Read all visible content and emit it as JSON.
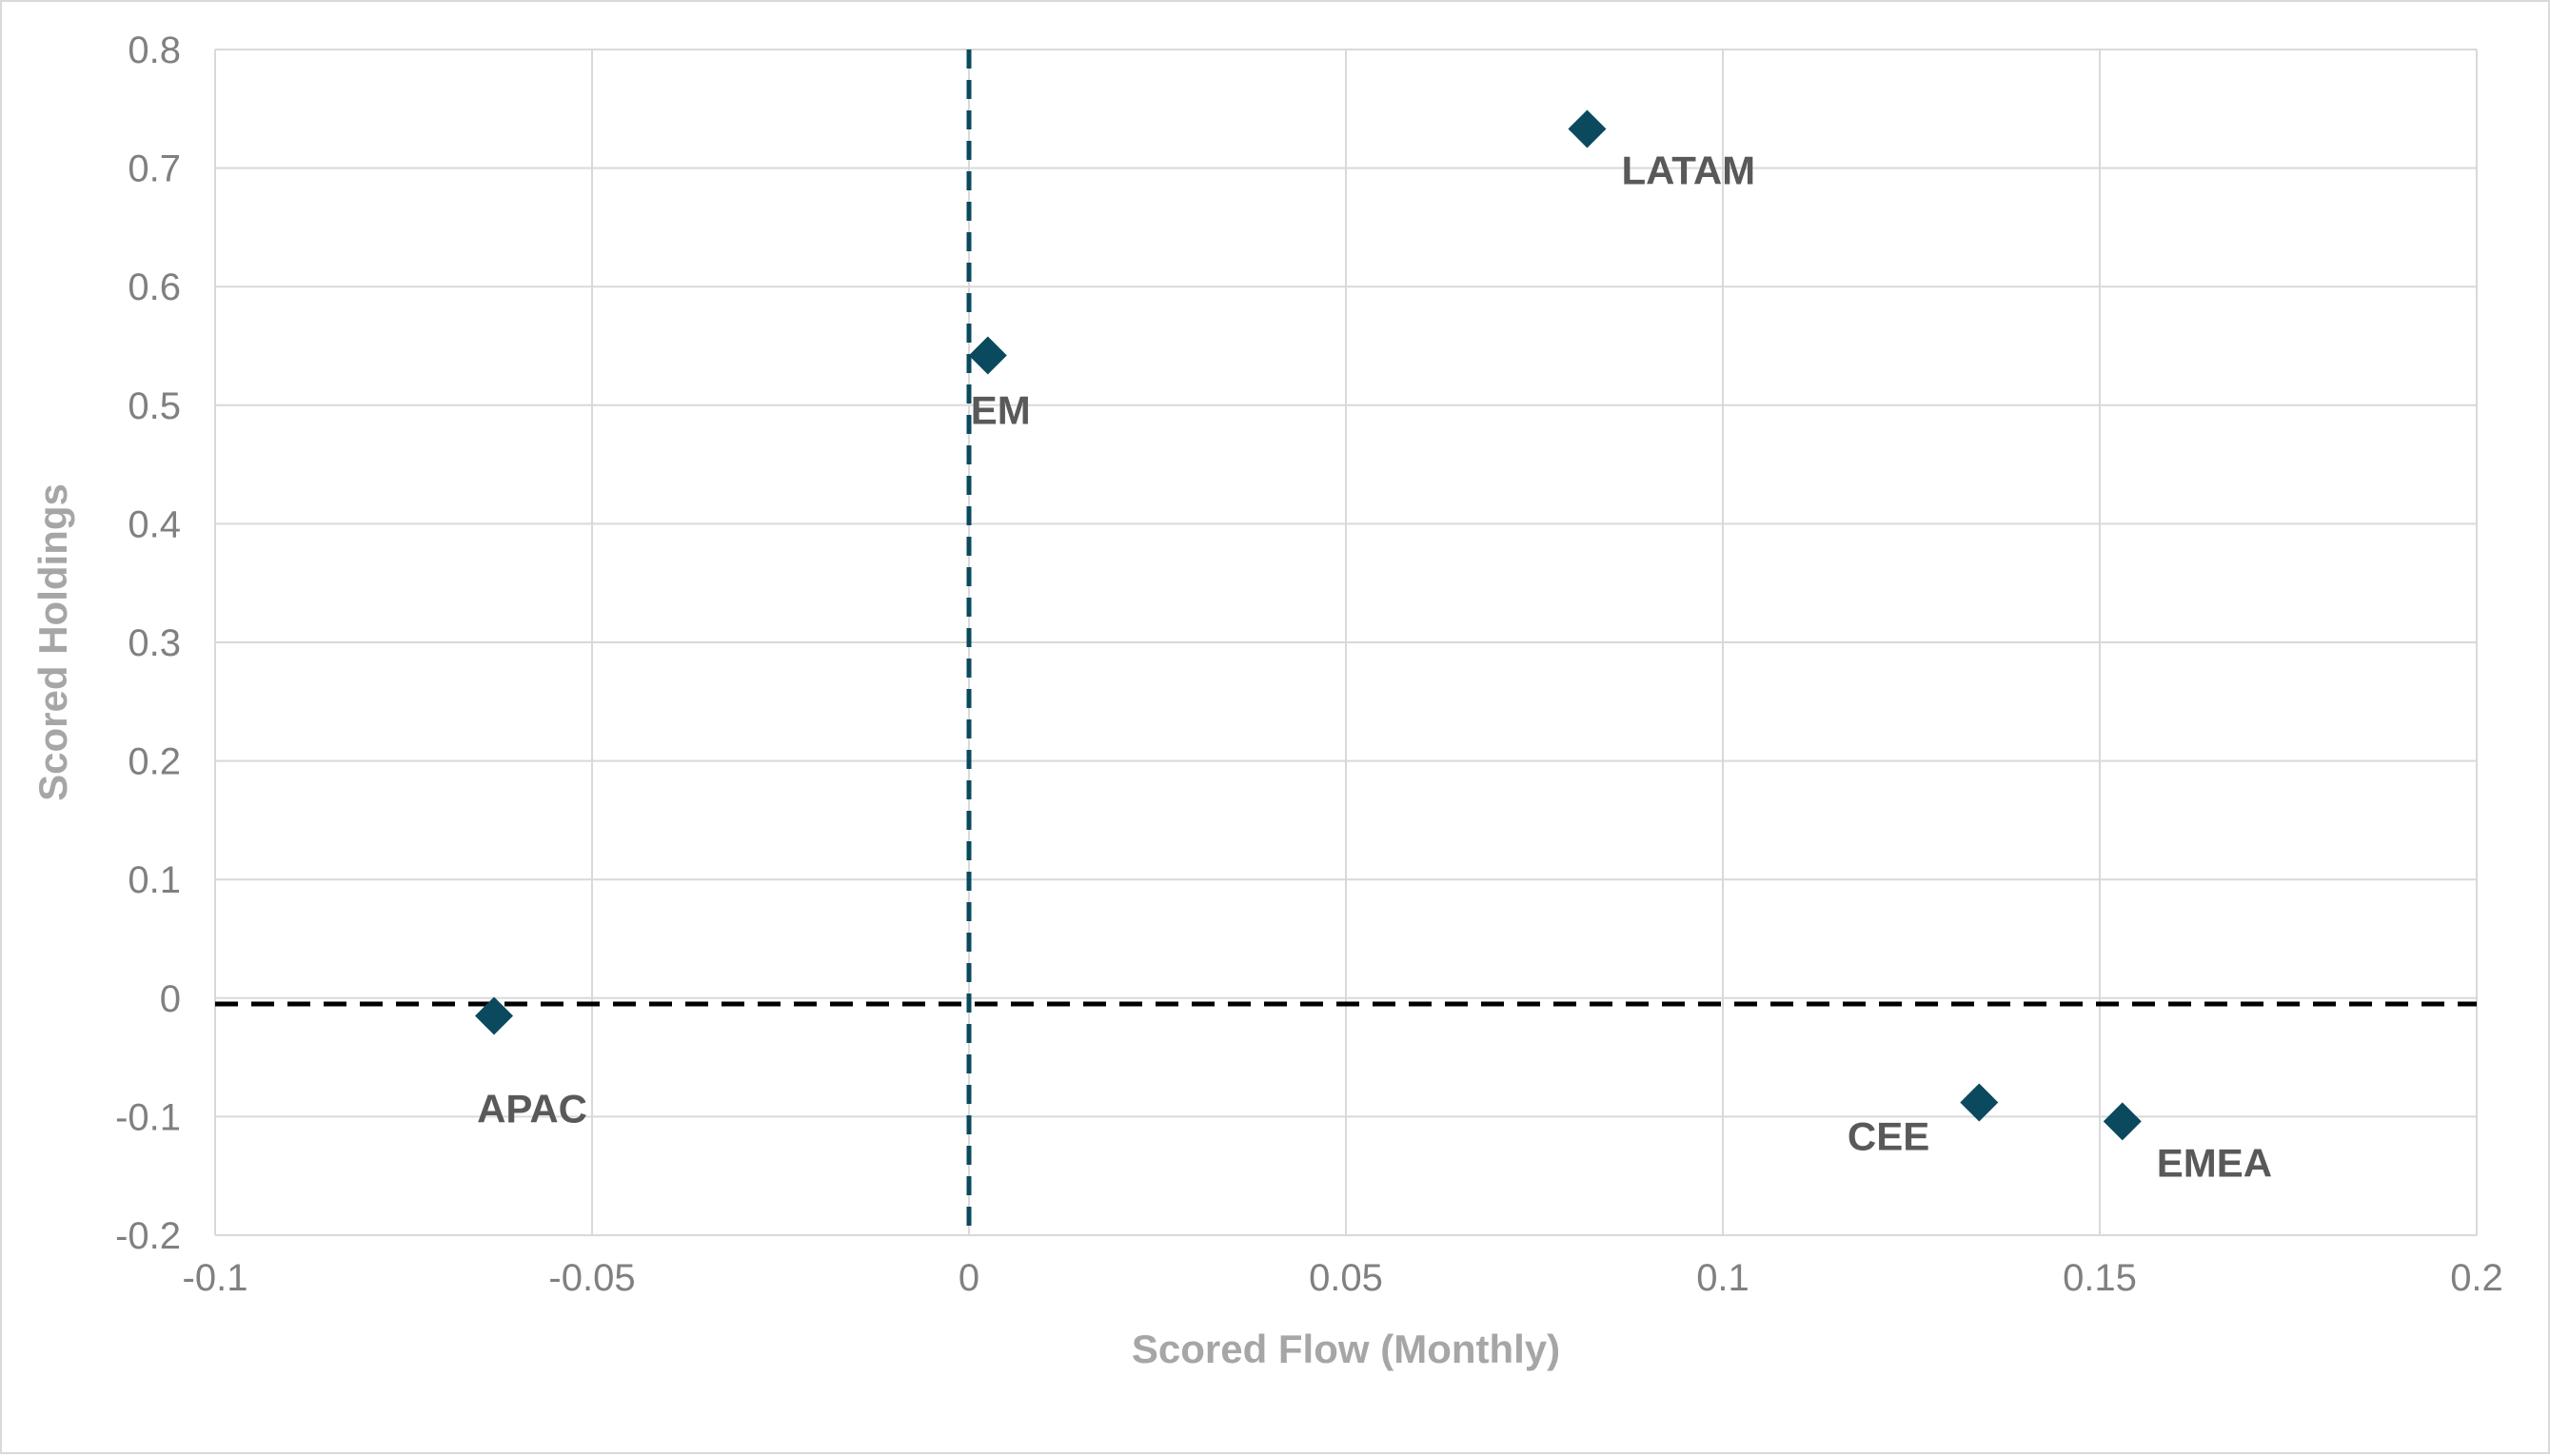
{
  "chart_data": {
    "type": "scatter",
    "title": "",
    "xlabel": "Scored Flow (Monthly)",
    "ylabel": "Scored Holdings",
    "xlim": [
      -0.1,
      0.2
    ],
    "ylim": [
      -0.2,
      0.8
    ],
    "xticks": [
      -0.1,
      -0.05,
      0,
      0.05,
      0.1,
      0.15,
      0.2
    ],
    "xtick_labels": [
      "-0.1",
      "-0.05",
      "0",
      "0.05",
      "0.1",
      "0.15",
      "0.2"
    ],
    "yticks": [
      -0.2,
      -0.1,
      0,
      0.1,
      0.2,
      0.3,
      0.4,
      0.5,
      0.6,
      0.7,
      0.8
    ],
    "ytick_labels": [
      "-0.2",
      "-0.1",
      "0",
      "0.1",
      "0.2",
      "0.3",
      "0.4",
      "0.5",
      "0.6",
      "0.7",
      "0.8"
    ],
    "grid": true,
    "marker": "diamond",
    "marker_color": "#0b4a5e",
    "reference_lines": [
      {
        "orientation": "vertical",
        "x": 0,
        "color": "#0b4a5e",
        "style": "dashed"
      },
      {
        "orientation": "horizontal",
        "y": -0.005,
        "color": "#000000",
        "style": "dashed"
      }
    ],
    "points": [
      {
        "label": "LATAM",
        "x": 0.082,
        "y": 0.733,
        "label_position": "bottom-right"
      },
      {
        "label": "EM",
        "x": 0.0025,
        "y": 0.542,
        "label_position": "bottom-right"
      },
      {
        "label": "APAC",
        "x": -0.063,
        "y": -0.015,
        "label_position": "bottom-center"
      },
      {
        "label": "CEE",
        "x": 0.134,
        "y": -0.088,
        "label_position": "bottom-left"
      },
      {
        "label": "EMEA",
        "x": 0.153,
        "y": -0.104,
        "label_position": "bottom-right"
      }
    ]
  }
}
